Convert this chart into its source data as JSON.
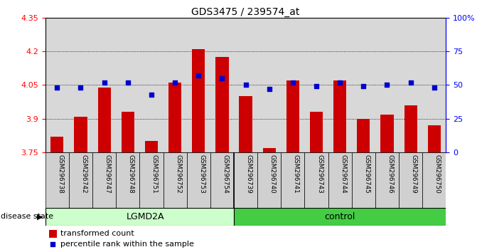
{
  "title": "GDS3475 / 239574_at",
  "samples": [
    "GSM296738",
    "GSM296742",
    "GSM296747",
    "GSM296748",
    "GSM296751",
    "GSM296752",
    "GSM296753",
    "GSM296754",
    "GSM296739",
    "GSM296740",
    "GSM296741",
    "GSM296743",
    "GSM296744",
    "GSM296745",
    "GSM296746",
    "GSM296749",
    "GSM296750"
  ],
  "transformed_count": [
    3.82,
    3.91,
    4.04,
    3.93,
    3.8,
    4.06,
    4.21,
    4.175,
    4.0,
    3.77,
    4.07,
    3.93,
    4.07,
    3.9,
    3.92,
    3.96,
    3.87
  ],
  "percentile_rank": [
    48,
    48,
    52,
    52,
    43,
    52,
    57,
    55,
    50,
    47,
    52,
    49,
    52,
    49,
    50,
    52,
    48
  ],
  "ylim_left": [
    3.75,
    4.35
  ],
  "ylim_right": [
    0,
    100
  ],
  "yticks_left": [
    3.75,
    3.9,
    4.05,
    4.2,
    4.35
  ],
  "ytick_labels_left": [
    "3.75",
    "3.9",
    "4.05",
    "4.2",
    "4.35"
  ],
  "yticks_right": [
    0,
    25,
    50,
    75,
    100
  ],
  "ytick_labels_right": [
    "0",
    "25",
    "50",
    "75",
    "100%"
  ],
  "bar_color": "#cc0000",
  "dot_color": "#0000cc",
  "bg_color": "#d8d8d8",
  "lgmd2a_count": 8,
  "lgmd2a_label": "LGMD2A",
  "control_label": "control",
  "lgmd2a_color": "#ccffcc",
  "control_color": "#44cc44",
  "disease_state_label": "disease state",
  "legend_bar_label": "transformed count",
  "legend_dot_label": "percentile rank within the sample",
  "bar_width": 0.55,
  "grid_yticks": [
    3.9,
    4.05,
    4.2
  ]
}
